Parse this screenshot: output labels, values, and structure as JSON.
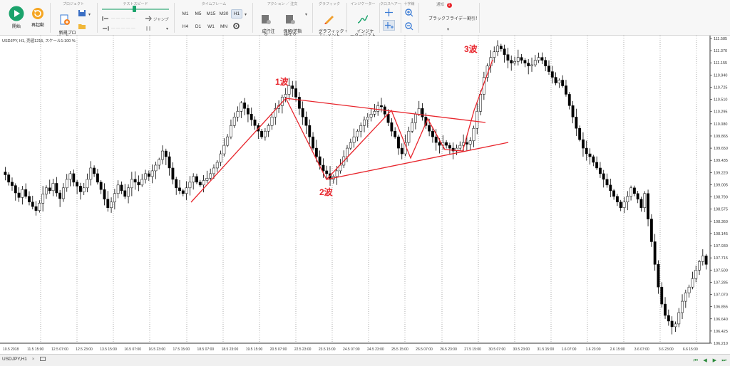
{
  "ribbon": {
    "start_label": "開始",
    "restart_label": "再起動",
    "project_group": "プロジェクト",
    "new_project_label": "新規プロ\nジェクト",
    "test_speed_group": "テストスピード",
    "jump_label": "ジャンプ",
    "timeframe_group": "タイムフレーム",
    "timeframes": [
      "M1",
      "M5",
      "M15",
      "M30",
      "H1",
      "H4",
      "D1",
      "W1",
      "MN"
    ],
    "active_timeframe": "H1",
    "action_group": "アクション ／ 注文",
    "market_order_label": "成行注\n文",
    "pending_order_label": "保留/逆指\n値注文",
    "graphic_group": "グラフィック",
    "graphic_elements_label": "グラフィック・\nエレメント",
    "indicator_group": "インジケーター",
    "indicator_list_label": "インジケ\nーターリスト",
    "crosshair_group": "クロスヘアー",
    "zoom_group": "十字線",
    "notification_group": "通知",
    "notification_count": "1",
    "notification_text": "ブラックフライデー割引！"
  },
  "chart": {
    "symbol_label": "USDJPY, H1, 売値1215, スケール1:100 %",
    "price_labels": [
      "111.585",
      "111.370",
      "111.155",
      "110.940",
      "110.725",
      "110.510",
      "110.295",
      "110.080",
      "109.865",
      "109.650",
      "109.435",
      "109.220",
      "109.005",
      "108.790",
      "108.575",
      "108.360",
      "108.145",
      "107.930",
      "107.715",
      "107.500",
      "107.285",
      "107.070",
      "106.855",
      "106.640",
      "106.425",
      "106.210"
    ],
    "time_labels": [
      "10.5 2018",
      "11.5 15:00",
      "12.5 07:00",
      "12.5 23:00",
      "13.5 15:00",
      "16.5 07:00",
      "16.5 23:00",
      "17.5 15:00",
      "18.5 07:00",
      "18.5 23:00",
      "19.5 15:00",
      "20.5 07:00",
      "22.5 23:00",
      "23.5 15:00",
      "24.5 07:00",
      "24.5 23:00",
      "25.5 15:00",
      "26.5 07:00",
      "26.5 23:00",
      "27.5 15:00",
      "30.5 07:00",
      "30.5 23:00",
      "31.5 15:00",
      "1.6 07:00",
      "1.6 23:00",
      "2.6 15:00",
      "3.6 07:00",
      "3.6 23:00",
      "6.6 15:00"
    ],
    "annotations": {
      "wave1": "1波",
      "wave2": "2波",
      "wave3": "3波"
    },
    "colors": {
      "candle": "#000000",
      "annotation": "#e8262d",
      "grid": "#7a7a7a"
    },
    "chart_data": {
      "type": "candlestick",
      "closes": [
        109.18,
        109.05,
        108.99,
        108.86,
        108.78,
        108.92,
        108.8,
        108.7,
        108.62,
        108.55,
        108.68,
        108.84,
        108.95,
        108.9,
        109.03,
        108.86,
        108.76,
        108.95,
        109.1,
        109.2,
        109.05,
        108.98,
        108.88,
        108.95,
        109.1,
        109.3,
        109.2,
        109.05,
        108.92,
        108.75,
        108.6,
        108.7,
        108.85,
        109.0,
        108.9,
        108.8,
        108.95,
        109.1,
        109.05,
        109.0,
        109.1,
        109.2,
        109.15,
        109.25,
        109.35,
        109.45,
        109.6,
        109.5,
        109.3,
        109.1,
        108.95,
        108.9,
        108.85,
        108.95,
        109.05,
        109.15,
        109.05,
        109.0,
        109.08,
        109.12,
        109.2,
        109.3,
        109.4,
        109.55,
        109.7,
        109.85,
        110.05,
        110.2,
        110.3,
        110.45,
        110.35,
        110.25,
        110.15,
        110.05,
        109.95,
        109.85,
        109.95,
        110.05,
        110.2,
        110.35,
        110.4,
        110.55,
        110.6,
        110.75,
        110.7,
        110.55,
        110.35,
        110.2,
        110.05,
        109.85,
        109.65,
        109.5,
        109.35,
        109.25,
        109.2,
        109.1,
        109.15,
        109.25,
        109.35,
        109.5,
        109.65,
        109.75,
        109.85,
        109.95,
        110.05,
        110.15,
        110.2,
        110.25,
        110.3,
        110.4,
        110.38,
        110.25,
        110.1,
        109.95,
        109.85,
        109.65,
        109.55,
        109.75,
        109.95,
        110.1,
        110.25,
        110.35,
        110.2,
        110.05,
        109.95,
        109.85,
        109.75,
        109.7,
        109.75,
        109.7,
        109.65,
        109.6,
        109.65,
        109.7,
        109.75,
        109.72,
        109.78,
        110.0,
        110.3,
        110.6,
        110.9,
        111.1,
        111.25,
        111.35,
        111.45,
        111.4,
        111.3,
        111.2,
        111.15,
        111.18,
        111.25,
        111.2,
        111.15,
        111.1,
        111.12,
        111.2,
        111.25,
        111.2,
        111.1,
        111.0,
        110.9,
        110.8,
        110.85,
        110.75,
        110.6,
        110.4,
        110.2,
        110.0,
        109.8,
        109.65,
        109.55,
        109.5,
        109.4,
        109.3,
        109.2,
        109.1,
        109.0,
        108.9,
        108.8,
        108.7,
        108.6,
        108.7,
        108.8,
        108.95,
        108.85,
        108.75,
        108.6,
        108.85,
        108.4,
        108.0,
        107.6,
        107.2,
        106.9,
        106.7,
        106.6,
        106.5,
        106.55,
        106.75,
        106.95,
        107.1,
        107.2,
        107.35,
        107.5,
        107.65,
        107.75,
        107.6
      ]
    }
  },
  "bottom": {
    "tab_label": "USDJPY,H1"
  }
}
